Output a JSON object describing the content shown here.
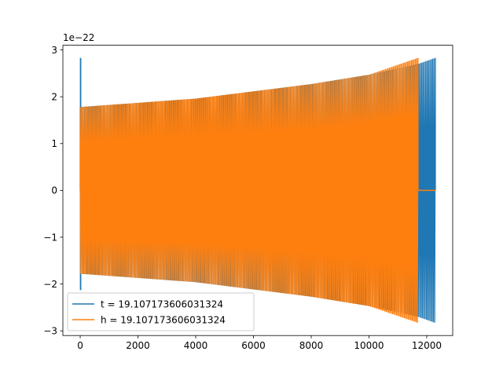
{
  "chart_data": {
    "type": "line",
    "title": "",
    "xlabel": "",
    "ylabel": "",
    "y_offset_label": "1e−22",
    "xlim": [
      -600,
      12900
    ],
    "ylim": [
      -3.1,
      3.1
    ],
    "x_ticks": [
      0,
      2000,
      4000,
      6000,
      8000,
      10000,
      12000
    ],
    "x_tick_labels": [
      "0",
      "2000",
      "4000",
      "6000",
      "8000",
      "10000",
      "12000"
    ],
    "y_ticks": [
      -3,
      -2,
      -1,
      0,
      1,
      2,
      3
    ],
    "y_tick_labels": [
      "−3",
      "−2",
      "−1",
      "0",
      "1",
      "2",
      "3"
    ],
    "grid": false,
    "legend_position": "lower-left",
    "series": [
      {
        "name": "t = 19.107173606031324",
        "color": "#1f77b4",
        "x_start": 0,
        "x_end": 12300,
        "spike_at_start": {
          "x": 0,
          "ymax": 2.83,
          "ymin": -2.13
        },
        "envelope": [
          [
            0,
            1.78
          ],
          [
            4000,
            1.96
          ],
          [
            8000,
            2.27
          ],
          [
            10000,
            2.47
          ],
          [
            11700,
            2.7
          ],
          [
            12300,
            2.83
          ]
        ],
        "envelope_neg": [
          [
            0,
            -1.78
          ],
          [
            4000,
            -1.96
          ],
          [
            8000,
            -2.27
          ],
          [
            10000,
            -2.47
          ],
          [
            11700,
            -2.7
          ],
          [
            12300,
            -2.83
          ]
        ]
      },
      {
        "name": "h = 19.107173606031324",
        "color": "#ff7f0e",
        "x_start": 0,
        "x_end": 11700,
        "flat_tail": {
          "x_from": 11700,
          "x_to": 12300,
          "y": 0
        },
        "envelope": [
          [
            0,
            1.78
          ],
          [
            4000,
            1.96
          ],
          [
            8000,
            2.27
          ],
          [
            10000,
            2.47
          ],
          [
            11700,
            2.83
          ]
        ],
        "envelope_neg": [
          [
            0,
            -1.78
          ],
          [
            4000,
            -1.96
          ],
          [
            8000,
            -2.27
          ],
          [
            10000,
            -2.47
          ],
          [
            11700,
            -2.83
          ]
        ]
      }
    ]
  }
}
